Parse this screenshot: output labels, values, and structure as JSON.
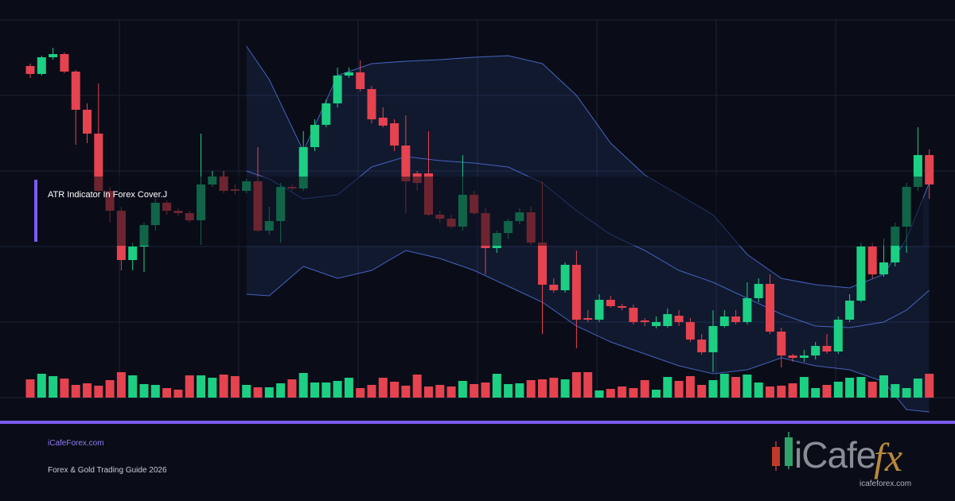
{
  "banner": {
    "title": "ATR Indicator In Forex Cover.J",
    "site": "iCafeForex.com",
    "subtitle": "Forex & Gold Trading Guide 2026"
  },
  "logo": {
    "brand": "iCafe",
    "accent": "fx",
    "url": "icafeforex.com"
  },
  "chart_data": {
    "type": "candlestick",
    "ylim": [
      0,
      530
    ],
    "volume_lim": [
      0,
      100
    ],
    "up_color": "#1ccf83",
    "down_color": "#e5434f",
    "band_color": "#4d72d8",
    "open": [
      447,
      437,
      458,
      462,
      440,
      392,
      362,
      290,
      265,
      203,
      220,
      247,
      275,
      265,
      262,
      253,
      298,
      308,
      292,
      290,
      302,
      240,
      252,
      295,
      293,
      345,
      373,
      400,
      435,
      439,
      418,
      382,
      375,
      347,
      312,
      312,
      260,
      255,
      245,
      285,
      262,
      218,
      237,
      252,
      263,
      225,
      172,
      165,
      197,
      130,
      128,
      153,
      145,
      143,
      127,
      120,
      120,
      133,
      125,
      103,
      87,
      120,
      132,
      125,
      155,
      173,
      113,
      83,
      80,
      83,
      95,
      88,
      128,
      152,
      220,
      185,
      200,
      245,
      295,
      335
    ],
    "high": [
      450,
      460,
      470,
      464,
      442,
      400,
      425,
      295,
      270,
      225,
      250,
      280,
      278,
      268,
      265,
      362,
      315,
      315,
      298,
      305,
      345,
      270,
      300,
      298,
      365,
      380,
      405,
      445,
      445,
      454,
      422,
      395,
      380,
      385,
      315,
      365,
      265,
      260,
      335,
      290,
      268,
      240,
      255,
      268,
      270,
      302,
      180,
      200,
      215,
      140,
      160,
      158,
      148,
      147,
      130,
      132,
      142,
      140,
      130,
      110,
      140,
      140,
      140,
      175,
      180,
      185,
      118,
      85,
      90,
      100,
      110,
      132,
      160,
      225,
      225,
      230,
      250,
      300,
      370,
      342
    ],
    "low": [
      432,
      435,
      455,
      438,
      348,
      350,
      285,
      250,
      190,
      190,
      188,
      240,
      260,
      258,
      250,
      222,
      295,
      287,
      285,
      287,
      238,
      235,
      225,
      290,
      290,
      340,
      370,
      395,
      432,
      415,
      375,
      370,
      340,
      262,
      290,
      258,
      250,
      243,
      240,
      260,
      185,
      212,
      230,
      248,
      222,
      110,
      162,
      162,
      92,
      125,
      125,
      143,
      140,
      122,
      120,
      117,
      118,
      120,
      100,
      84,
      62,
      118,
      122,
      122,
      150,
      110,
      68,
      75,
      75,
      78,
      85,
      85,
      125,
      150,
      180,
      182,
      195,
      212,
      290,
      280
    ],
    "close": [
      437,
      458,
      462,
      440,
      392,
      362,
      290,
      265,
      203,
      220,
      247,
      275,
      265,
      262,
      253,
      298,
      308,
      290,
      290,
      302,
      240,
      252,
      295,
      293,
      345,
      373,
      400,
      435,
      439,
      418,
      380,
      372,
      347,
      302,
      300,
      260,
      255,
      245,
      285,
      262,
      218,
      237,
      252,
      263,
      225,
      172,
      165,
      197,
      128,
      128,
      153,
      145,
      143,
      125,
      125,
      125,
      135,
      125,
      103,
      87,
      120,
      132,
      125,
      155,
      173,
      113,
      83,
      80,
      83,
      95,
      88,
      128,
      152,
      220,
      185,
      200,
      245,
      295,
      335,
      298
    ],
    "volume": [
      23,
      30,
      27,
      24,
      16,
      18,
      15,
      22,
      32,
      28,
      17,
      16,
      12,
      10,
      28,
      28,
      25,
      29,
      27,
      16,
      13,
      13,
      18,
      23,
      31,
      19,
      19,
      21,
      25,
      12,
      16,
      25,
      20,
      15,
      29,
      14,
      16,
      14,
      21,
      17,
      19,
      30,
      17,
      18,
      22,
      23,
      25,
      23,
      32,
      32,
      9,
      11,
      14,
      12,
      22,
      10,
      26,
      21,
      27,
      16,
      22,
      30,
      26,
      29,
      19,
      14,
      15,
      18,
      26,
      12,
      16,
      20,
      25,
      26,
      20,
      28,
      17,
      12,
      24,
      30
    ],
    "bands": {
      "x": [
        19,
        21,
        24,
        27,
        30,
        33,
        36,
        39,
        42,
        45,
        48,
        51,
        54,
        57,
        60,
        63,
        66,
        69,
        72,
        75,
        77,
        79
      ],
      "upper": [
        472,
        430,
        340,
        435,
        450,
        453,
        455,
        458,
        460,
        450,
        410,
        350,
        310,
        285,
        260,
        210,
        180,
        172,
        168,
        185,
        230,
        300
      ],
      "middle": [
        315,
        305,
        280,
        285,
        320,
        333,
        328,
        325,
        320,
        300,
        265,
        235,
        215,
        190,
        175,
        155,
        135,
        120,
        118,
        125,
        140,
        165
      ],
      "lower": [
        160,
        158,
        195,
        180,
        190,
        215,
        205,
        190,
        170,
        150,
        120,
        100,
        85,
        70,
        60,
        65,
        80,
        70,
        65,
        50,
        15,
        12
      ]
    }
  }
}
